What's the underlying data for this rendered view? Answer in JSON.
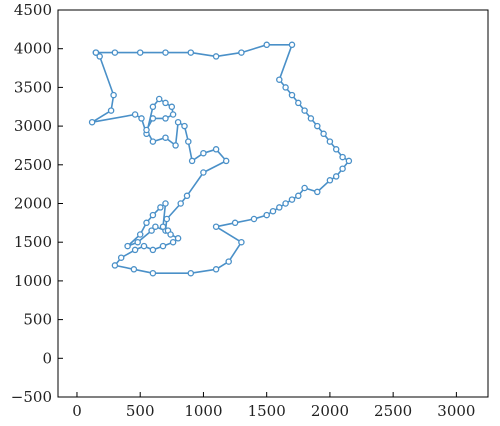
{
  "chart_data": {
    "type": "line",
    "title": "",
    "xlabel": "",
    "ylabel": "",
    "xlim": [
      -150,
      3250
    ],
    "ylim": [
      -500,
      4500
    ],
    "xticks": [
      0,
      500,
      1000,
      1500,
      2000,
      2500,
      3000
    ],
    "yticks": [
      -500,
      0,
      500,
      1000,
      1500,
      2000,
      2500,
      3000,
      3500,
      4000,
      4500
    ],
    "grid": false,
    "legend": "none",
    "color": "#4a90c8",
    "series": [
      {
        "points": [
          [
            150,
            3950
          ],
          [
            180,
            3900
          ],
          [
            290,
            3400
          ],
          [
            270,
            3200
          ],
          [
            120,
            3050
          ],
          [
            460,
            3150
          ],
          [
            510,
            3100
          ],
          [
            550,
            2900
          ],
          [
            600,
            3250
          ],
          [
            650,
            3350
          ],
          [
            700,
            3300
          ],
          [
            750,
            3250
          ],
          [
            760,
            3150
          ],
          [
            700,
            3100
          ],
          [
            600,
            3100
          ],
          [
            550,
            2950
          ],
          [
            600,
            2800
          ],
          [
            700,
            2850
          ],
          [
            780,
            2750
          ],
          [
            800,
            3050
          ],
          [
            850,
            3000
          ],
          [
            880,
            2800
          ],
          [
            910,
            2550
          ],
          [
            1000,
            2650
          ],
          [
            1100,
            2700
          ],
          [
            1180,
            2550
          ],
          [
            1000,
            2400
          ],
          [
            870,
            2100
          ],
          [
            820,
            2000
          ],
          [
            710,
            1800
          ],
          [
            700,
            1650
          ],
          [
            620,
            1700
          ],
          [
            590,
            1650
          ],
          [
            480,
            1500
          ],
          [
            400,
            1450
          ],
          [
            500,
            1600
          ],
          [
            550,
            1750
          ],
          [
            600,
            1850
          ],
          [
            660,
            1950
          ],
          [
            700,
            2000
          ],
          [
            680,
            1700
          ],
          [
            720,
            1650
          ],
          [
            740,
            1600
          ],
          [
            800,
            1550
          ],
          [
            760,
            1500
          ],
          [
            680,
            1450
          ],
          [
            600,
            1400
          ],
          [
            530,
            1450
          ],
          [
            460,
            1400
          ],
          [
            350,
            1300
          ],
          [
            300,
            1200
          ],
          [
            450,
            1150
          ],
          [
            600,
            1100
          ],
          [
            900,
            1100
          ],
          [
            1100,
            1150
          ],
          [
            1200,
            1250
          ],
          [
            1300,
            1500
          ],
          [
            1100,
            1700
          ],
          [
            1250,
            1750
          ],
          [
            1400,
            1800
          ],
          [
            1500,
            1850
          ],
          [
            1550,
            1900
          ],
          [
            1600,
            1950
          ],
          [
            1650,
            2000
          ],
          [
            1700,
            2050
          ],
          [
            1750,
            2100
          ],
          [
            1800,
            2200
          ],
          [
            1900,
            2150
          ],
          [
            2000,
            2300
          ],
          [
            2050,
            2350
          ],
          [
            2100,
            2450
          ],
          [
            2150,
            2550
          ],
          [
            2100,
            2600
          ],
          [
            2050,
            2700
          ],
          [
            2000,
            2800
          ],
          [
            1950,
            2900
          ],
          [
            1900,
            3000
          ],
          [
            1850,
            3100
          ],
          [
            1800,
            3200
          ],
          [
            1750,
            3300
          ],
          [
            1700,
            3400
          ],
          [
            1650,
            3500
          ],
          [
            1600,
            3600
          ],
          [
            1700,
            4050
          ],
          [
            1500,
            4050
          ],
          [
            1300,
            3950
          ],
          [
            1100,
            3900
          ],
          [
            900,
            3950
          ],
          [
            700,
            3950
          ],
          [
            500,
            3950
          ],
          [
            300,
            3950
          ],
          [
            150,
            3950
          ]
        ]
      }
    ]
  }
}
